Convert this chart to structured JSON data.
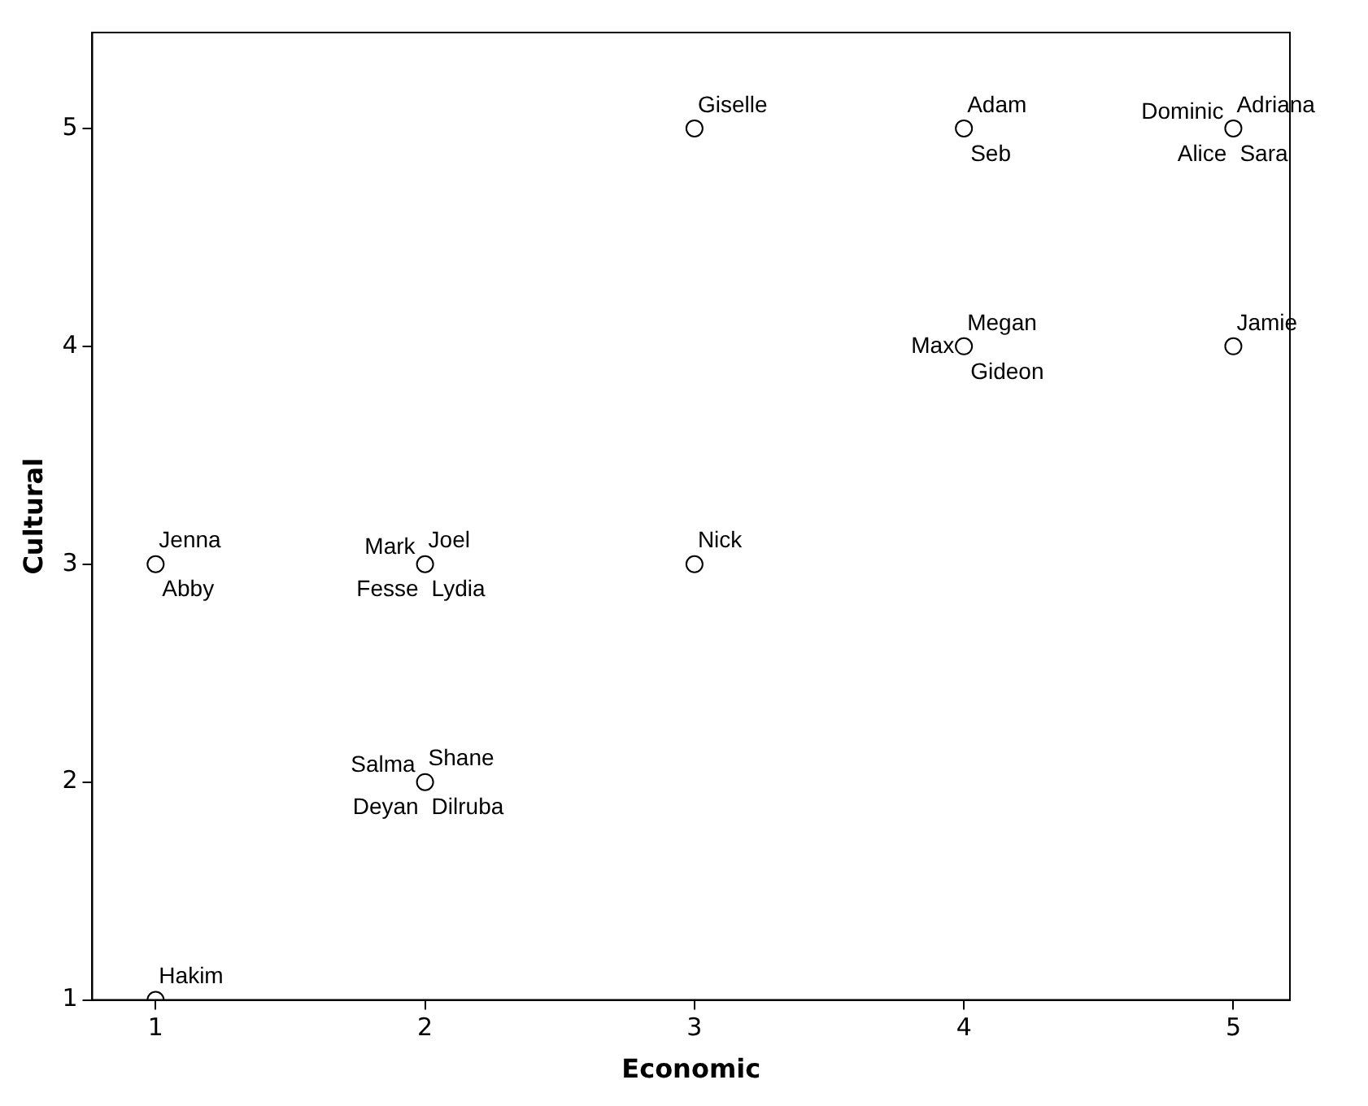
{
  "chart_data": {
    "type": "scatter",
    "xlabel": "Economic",
    "ylabel": "Cultural",
    "x": [
      1,
      2,
      2,
      1,
      3,
      3,
      4,
      4,
      5,
      5
    ],
    "series": [
      {
        "color": "#000000",
        "values": [
          3,
          3,
          2,
          1,
          5,
          3,
          5,
          4,
          5,
          4
        ]
      }
    ],
    "marker": "circle",
    "grid": false,
    "legend": false,
    "xlim": [
      0.765,
      5.21
    ],
    "xticks": [
      1,
      2,
      3,
      4,
      5
    ],
    "ylim": [
      1,
      5.44
    ],
    "yticks": [
      1,
      2,
      3,
      4,
      5
    ],
    "annotations": [
      {
        "text": "Jenna",
        "x": 1,
        "y": 3
      },
      {
        "text": "Abby",
        "x": 1,
        "y": 3
      },
      {
        "text": "Joel",
        "x": 2,
        "y": 3
      },
      {
        "text": "Lydia",
        "x": 2,
        "y": 3
      },
      {
        "text": "Mark",
        "x": 2,
        "y": 3
      },
      {
        "text": "Fesse",
        "x": 2,
        "y": 3
      },
      {
        "text": "Shane",
        "x": 2,
        "y": 2
      },
      {
        "text": "Dilruba",
        "x": 2,
        "y": 2
      },
      {
        "text": "Salma",
        "x": 2,
        "y": 2
      },
      {
        "text": "Deyan",
        "x": 2,
        "y": 2
      },
      {
        "text": "Hakim",
        "x": 1,
        "y": 1
      },
      {
        "text": "Giselle",
        "x": 3,
        "y": 5
      },
      {
        "text": "Nick",
        "x": 3,
        "y": 3
      },
      {
        "text": "Adam",
        "x": 4,
        "y": 5
      },
      {
        "text": "Seb",
        "x": 4,
        "y": 5
      },
      {
        "text": "Megan",
        "x": 4,
        "y": 4
      },
      {
        "text": "Gideon",
        "x": 4,
        "y": 4
      },
      {
        "text": "Max",
        "x": 4,
        "y": 4
      },
      {
        "text": "Adriana",
        "x": 5,
        "y": 5
      },
      {
        "text": "Sara",
        "x": 5,
        "y": 5
      },
      {
        "text": "Dominic",
        "x": 5,
        "y": 5
      },
      {
        "text": "Alice",
        "x": 5,
        "y": 5
      },
      {
        "text": "Jamie",
        "x": 5,
        "y": 4
      }
    ]
  }
}
